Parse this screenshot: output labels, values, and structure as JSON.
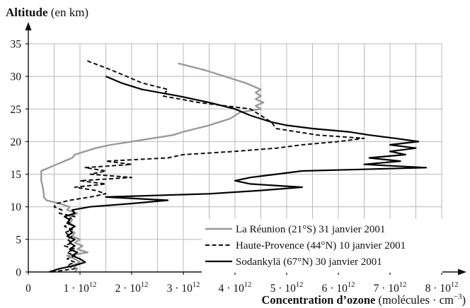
{
  "chart_data": {
    "type": "line",
    "ylabel_bold": "Altitude",
    "ylabel_rest": "(en km)",
    "xlabel_bold": "Concentration d’ozone",
    "xlabel_rest": "(molécules · cm",
    "xlabel_exp": "−3",
    "xlabel_close": ")",
    "ylim": [
      0,
      36
    ],
    "xlim": [
      0,
      8.2
    ],
    "x_unit_exponent": 12,
    "y_ticks": [
      0,
      5,
      10,
      15,
      20,
      25,
      30,
      35
    ],
    "y_tick_labels": [
      "0",
      "5",
      "10",
      "15",
      "20",
      "25",
      "30",
      "35"
    ],
    "x_ticks": [
      0,
      1,
      2,
      3,
      4,
      5,
      6,
      7,
      8
    ],
    "x_tick_labels": [
      {
        "base": "0",
        "exp": ""
      },
      {
        "base": "1 · 10",
        "exp": "12"
      },
      {
        "base": "2 · 10",
        "exp": "12"
      },
      {
        "base": "3 · 10",
        "exp": "12"
      },
      {
        "base": "4 · 10",
        "exp": "12"
      },
      {
        "base": "5 · 10",
        "exp": "12"
      },
      {
        "base": "6 · 10",
        "exp": "12"
      },
      {
        "base": "7 · 10",
        "exp": "12"
      },
      {
        "base": "8 · 10",
        "exp": "12"
      }
    ],
    "grid": true,
    "legend_position": "bottom-right",
    "series": [
      {
        "name": "La Réunion (21°S) 31 janvier 2001",
        "color": "#9a9a9a",
        "dash": "solid",
        "points": [
          [
            0.9,
            0
          ],
          [
            0.95,
            0.5
          ],
          [
            0.85,
            1
          ],
          [
            1.0,
            1.5
          ],
          [
            0.9,
            2
          ],
          [
            0.75,
            2.5
          ],
          [
            1.15,
            3
          ],
          [
            0.95,
            3.5
          ],
          [
            1.05,
            4
          ],
          [
            0.9,
            4.5
          ],
          [
            1.0,
            5
          ],
          [
            0.85,
            5.5
          ],
          [
            0.9,
            6
          ],
          [
            0.8,
            6.5
          ],
          [
            0.9,
            7
          ],
          [
            0.8,
            7.5
          ],
          [
            0.85,
            8
          ],
          [
            0.8,
            8.5
          ],
          [
            0.95,
            9
          ],
          [
            0.75,
            9.5
          ],
          [
            0.8,
            10
          ],
          [
            0.6,
            10.5
          ],
          [
            0.35,
            11
          ],
          [
            0.3,
            11.5
          ],
          [
            0.3,
            12
          ],
          [
            0.28,
            13
          ],
          [
            0.25,
            14
          ],
          [
            0.25,
            15
          ],
          [
            0.25,
            15.5
          ],
          [
            0.4,
            16
          ],
          [
            0.55,
            16.5
          ],
          [
            0.7,
            17
          ],
          [
            0.85,
            17.5
          ],
          [
            0.9,
            18
          ],
          [
            1.1,
            18.5
          ],
          [
            1.3,
            19
          ],
          [
            1.6,
            19.5
          ],
          [
            2.0,
            20
          ],
          [
            2.4,
            20.5
          ],
          [
            2.8,
            21
          ],
          [
            3.0,
            21.5
          ],
          [
            3.25,
            22
          ],
          [
            3.5,
            22.5
          ],
          [
            3.7,
            23
          ],
          [
            3.9,
            23.5
          ],
          [
            4.0,
            24
          ],
          [
            4.1,
            24.5
          ],
          [
            4.5,
            25
          ],
          [
            4.4,
            25.5
          ],
          [
            4.55,
            26
          ],
          [
            4.4,
            26.5
          ],
          [
            4.5,
            27
          ],
          [
            4.4,
            27.5
          ],
          [
            4.5,
            28
          ],
          [
            4.2,
            29
          ],
          [
            3.8,
            30
          ],
          [
            3.4,
            31
          ],
          [
            2.9,
            32
          ]
        ]
      },
      {
        "name": "Haute-Provence (44°N) 10 janvier 2001",
        "color": "#111111",
        "dash": "dashed",
        "points": [
          [
            0.45,
            0
          ],
          [
            0.9,
            0.5
          ],
          [
            0.75,
            1
          ],
          [
            0.9,
            1.5
          ],
          [
            0.75,
            2
          ],
          [
            0.9,
            2.5
          ],
          [
            0.75,
            3
          ],
          [
            0.9,
            3.5
          ],
          [
            0.7,
            4
          ],
          [
            0.85,
            4.5
          ],
          [
            0.75,
            5
          ],
          [
            0.85,
            5.5
          ],
          [
            0.7,
            6
          ],
          [
            0.85,
            6.5
          ],
          [
            0.7,
            7
          ],
          [
            0.8,
            7.5
          ],
          [
            0.75,
            8
          ],
          [
            0.9,
            8.5
          ],
          [
            0.6,
            9
          ],
          [
            0.65,
            9.5
          ],
          [
            0.5,
            10
          ],
          [
            0.55,
            10.5
          ],
          [
            0.8,
            11
          ],
          [
            1.2,
            11.5
          ],
          [
            1.5,
            12
          ],
          [
            1.3,
            12.5
          ],
          [
            0.9,
            13
          ],
          [
            1.5,
            13.5
          ],
          [
            1.0,
            14
          ],
          [
            2.0,
            14.5
          ],
          [
            1.2,
            15
          ],
          [
            1.5,
            15.5
          ],
          [
            1.1,
            16
          ],
          [
            2.0,
            16.5
          ],
          [
            1.5,
            17
          ],
          [
            2.7,
            17.5
          ],
          [
            3.0,
            18
          ],
          [
            4.0,
            18.5
          ],
          [
            4.8,
            19
          ],
          [
            5.3,
            19.5
          ],
          [
            6.0,
            20
          ],
          [
            6.5,
            20.5
          ],
          [
            5.6,
            21
          ],
          [
            5.2,
            21.5
          ],
          [
            4.8,
            22
          ],
          [
            4.7,
            23
          ],
          [
            4.5,
            24
          ],
          [
            4.3,
            25
          ],
          [
            3.8,
            25.5
          ],
          [
            3.3,
            26
          ],
          [
            2.6,
            27
          ],
          [
            2.7,
            28
          ],
          [
            2.2,
            29
          ],
          [
            1.9,
            30
          ],
          [
            1.6,
            31
          ],
          [
            1.1,
            32.5
          ]
        ]
      },
      {
        "name": "Sodankylä (67°N) 30 janvier 2001",
        "color": "#000000",
        "dash": "solid",
        "points": [
          [
            0.4,
            0
          ],
          [
            0.6,
            0.5
          ],
          [
            0.9,
            1
          ],
          [
            1.1,
            1.5
          ],
          [
            1.0,
            2
          ],
          [
            0.85,
            2.5
          ],
          [
            0.95,
            3
          ],
          [
            0.8,
            3.5
          ],
          [
            0.9,
            4
          ],
          [
            0.8,
            4.5
          ],
          [
            0.9,
            5
          ],
          [
            0.75,
            5.5
          ],
          [
            0.85,
            6
          ],
          [
            0.8,
            6.5
          ],
          [
            0.9,
            7
          ],
          [
            0.75,
            7.5
          ],
          [
            0.8,
            8
          ],
          [
            0.7,
            8.5
          ],
          [
            0.9,
            9
          ],
          [
            0.85,
            9.5
          ],
          [
            1.2,
            10
          ],
          [
            2.0,
            10.5
          ],
          [
            2.7,
            11
          ],
          [
            1.5,
            11.5
          ],
          [
            3.5,
            12
          ],
          [
            4.5,
            12.5
          ],
          [
            5.3,
            13
          ],
          [
            4.3,
            13.5
          ],
          [
            4.0,
            14
          ],
          [
            4.3,
            14.5
          ],
          [
            4.8,
            15
          ],
          [
            5.3,
            15.5
          ],
          [
            7.7,
            16
          ],
          [
            6.5,
            16.5
          ],
          [
            7.2,
            17
          ],
          [
            6.6,
            17.5
          ],
          [
            7.3,
            18
          ],
          [
            7.0,
            18.5
          ],
          [
            7.5,
            19
          ],
          [
            7.0,
            19.5
          ],
          [
            7.55,
            20
          ],
          [
            7.1,
            20.5
          ],
          [
            6.6,
            21
          ],
          [
            6.2,
            21.5
          ],
          [
            5.5,
            22
          ],
          [
            5.0,
            22.5
          ],
          [
            4.7,
            23
          ],
          [
            4.3,
            24
          ],
          [
            4.0,
            25
          ],
          [
            3.5,
            26
          ],
          [
            2.9,
            27
          ],
          [
            2.2,
            28
          ],
          [
            1.8,
            29
          ],
          [
            1.5,
            30
          ]
        ]
      }
    ]
  }
}
